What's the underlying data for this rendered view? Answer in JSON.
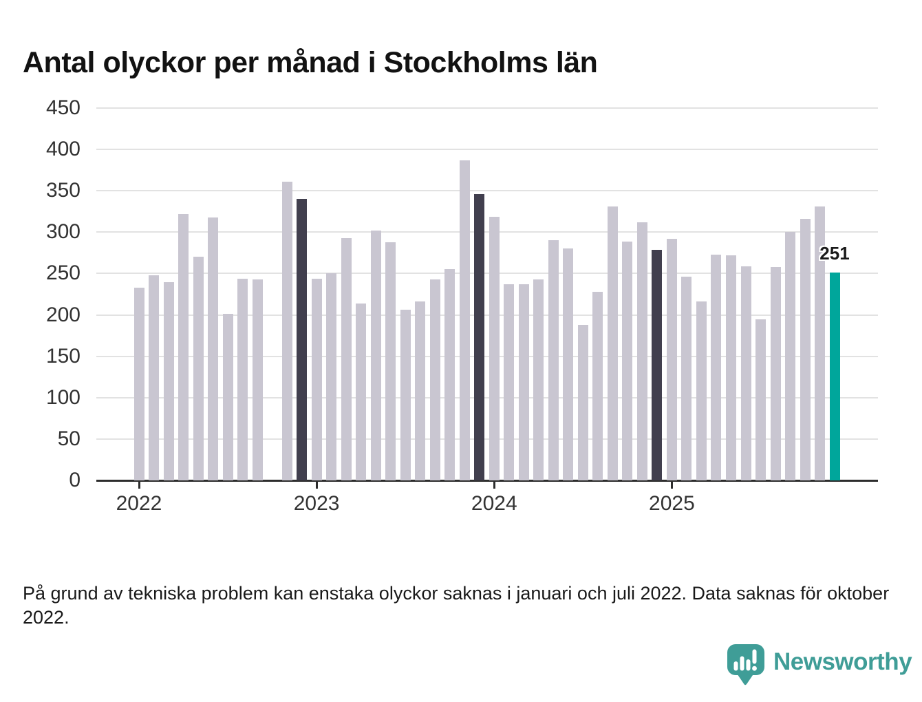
{
  "title": "Antal olyckor per månad i Stockholms län",
  "footnote": "På grund av tekniska problem kan enstaka olyckor saknas i januari och juli 2022. Data saknas för oktober 2022.",
  "brand": {
    "name": "Newsworthy",
    "icon": "newsworthy-speech-bubble-bars-icon"
  },
  "colors": {
    "bar_default": "#c9c6d1",
    "bar_december": "#413f4e",
    "bar_current": "#00a69b",
    "gridline": "#e2e2e2",
    "axis": "#2d2d2d",
    "tick_text": "#333333",
    "title_text": "#121212",
    "brand_teal": "#3f9d97"
  },
  "chart_data": {
    "type": "bar",
    "title": "Antal olyckor per månad i Stockholms län",
    "xlabel": "",
    "ylabel": "",
    "ylim": [
      0,
      450
    ],
    "yticks": [
      0,
      50,
      100,
      150,
      200,
      250,
      300,
      350,
      400,
      450
    ],
    "grid": "horizontal",
    "legend": "none",
    "x_unit": "month",
    "categories_note": "12 monthly values per year, January to December; null = missing month",
    "series": [
      {
        "year": "2022",
        "values": [
          233,
          248,
          240,
          322,
          270,
          318,
          201,
          244,
          243,
          null,
          361,
          340
        ]
      },
      {
        "year": "2023",
        "values": [
          244,
          250,
          293,
          214,
          302,
          288,
          206,
          216,
          243,
          255,
          387,
          346
        ]
      },
      {
        "year": "2024",
        "values": [
          319,
          237,
          237,
          243,
          290,
          280,
          188,
          228,
          331,
          289,
          312,
          279
        ]
      },
      {
        "year": "2025",
        "values": [
          292,
          246,
          216,
          273,
          272,
          259,
          195,
          258,
          300,
          316,
          331,
          251
        ]
      }
    ],
    "xtick_years": [
      "2022",
      "2023",
      "2024",
      "2025"
    ],
    "dark_highlight_months": [
      "2022-12",
      "2023-12",
      "2024-12"
    ],
    "accent_month": "2025-12",
    "data_label": {
      "month": "2025-12",
      "text": "251"
    }
  }
}
